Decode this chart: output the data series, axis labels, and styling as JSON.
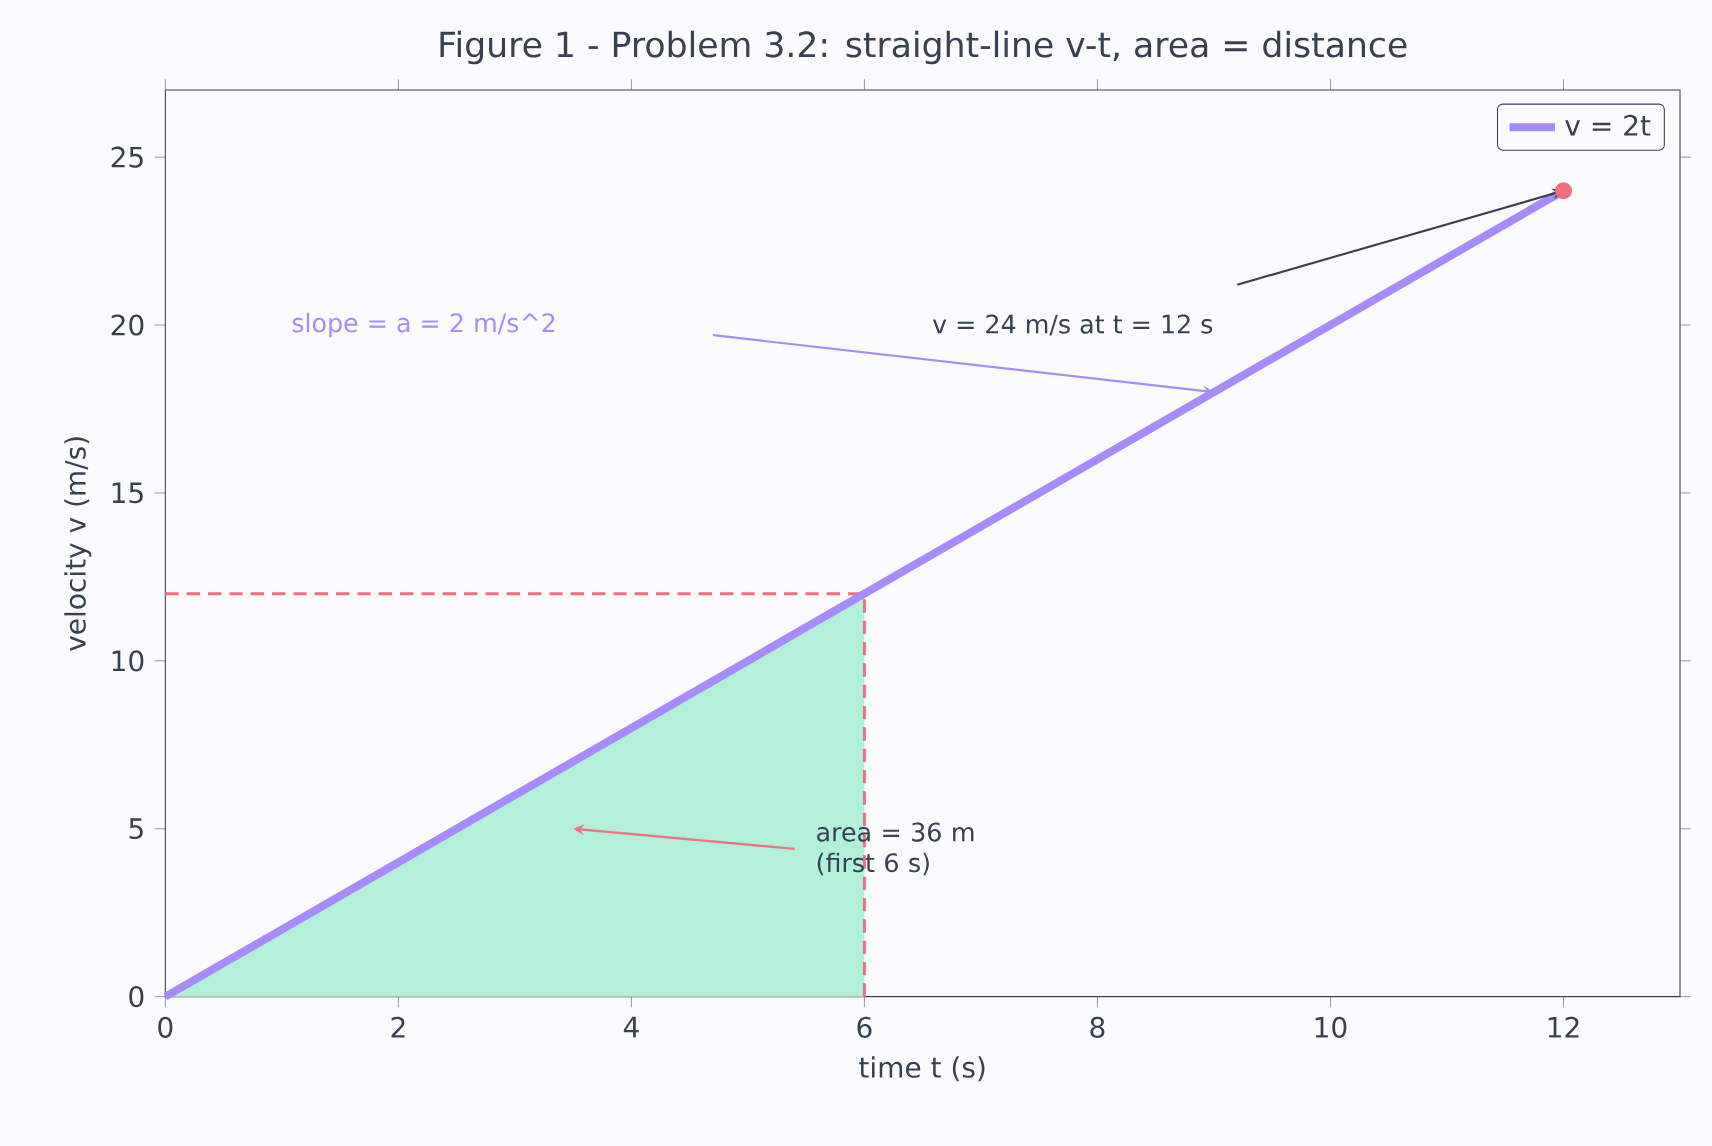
{
  "chart_data": {
    "type": "line",
    "title": "Figure 1 - Problem 3.2: straight-line v-t, area = distance",
    "xlabel": "time t (s)",
    "ylabel": "velocity v (m/s)",
    "xlim": [
      0,
      13
    ],
    "ylim": [
      0,
      27
    ],
    "xticks": [
      0,
      2,
      4,
      6,
      8,
      10,
      12
    ],
    "yticks": [
      0,
      5,
      10,
      15,
      20,
      25
    ],
    "grid": false,
    "legend": "top right",
    "series": [
      {
        "type": "area",
        "color": "#b2f0da",
        "x": [
          0,
          6
        ],
        "values": [
          0,
          12
        ]
      },
      {
        "type": "line",
        "color": "#f0707f",
        "line_style": "dashed",
        "x": [
          0,
          6
        ],
        "values": [
          12,
          12
        ]
      },
      {
        "type": "line",
        "color": "#f0707f",
        "line_style": "dashed",
        "x": [
          6,
          6
        ],
        "values": [
          0,
          12
        ]
      },
      {
        "name": "v = 2t",
        "color": "#a78bfa",
        "x": [
          0,
          12
        ],
        "values": [
          0,
          24
        ]
      },
      {
        "type": "scatter",
        "color": "#f0707f",
        "marker": "circle",
        "x": [
          12
        ],
        "values": [
          24
        ]
      }
    ],
    "annotations": [
      "v = 24 m/s at t = 12 s",
      "slope = a = 2 m/s^2",
      "area = 36 m (first 6 s)"
    ]
  }
}
